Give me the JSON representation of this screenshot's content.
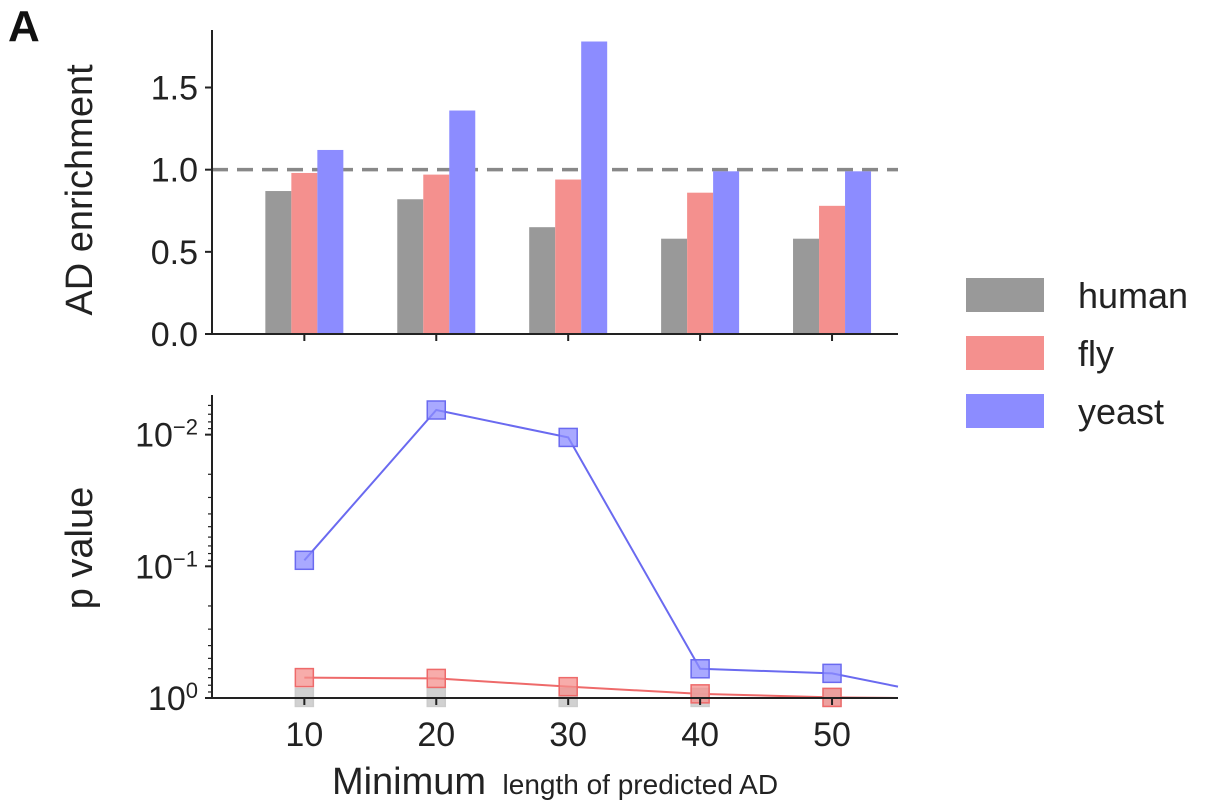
{
  "panel_label": "A",
  "colors": {
    "human": "#999999",
    "fly": "#f4908e",
    "yeast": "#8c8cff",
    "human_line": "#bbbbbb",
    "fly_line": "#ee6a6a",
    "yeast_line": "#6a6af0",
    "axis": "#222222",
    "reference": "#888888"
  },
  "chart_data": [
    {
      "type": "bar",
      "ylabel": "AD enrichment",
      "categories": [
        "10",
        "20",
        "30",
        "40",
        "50"
      ],
      "ylim": [
        0,
        1.85
      ],
      "yticks": [
        "0.0",
        "0.5",
        "1.0",
        "1.5"
      ],
      "reference_line": 1.0,
      "series": [
        {
          "name": "human",
          "values": [
            0.87,
            0.82,
            0.65,
            0.58,
            0.58
          ]
        },
        {
          "name": "fly",
          "values": [
            0.98,
            0.97,
            0.94,
            0.86,
            0.78
          ]
        },
        {
          "name": "yeast",
          "values": [
            1.12,
            1.36,
            1.78,
            0.99,
            0.99
          ]
        }
      ]
    },
    {
      "type": "line",
      "ylabel": "p value",
      "xlabel_main": "Minimum",
      "xlabel_rest": "length of predicted AD",
      "x": [
        10,
        20,
        30,
        40,
        50
      ],
      "xlim": [
        3,
        55
      ],
      "xticks": [
        "10",
        "20",
        "30",
        "40",
        "50"
      ],
      "yscale": "log-inverted",
      "yticks": [
        {
          "base": "10",
          "exp": "0",
          "value": 1
        },
        {
          "base": "10",
          "exp": "−1",
          "value": 0.1
        },
        {
          "base": "10",
          "exp": "−2",
          "value": 0.01
        }
      ],
      "series": [
        {
          "name": "human",
          "values": [
            0.99,
            0.99,
            0.99,
            0.99,
            0.99
          ]
        },
        {
          "name": "fly",
          "values": [
            0.7,
            0.71,
            0.82,
            0.93,
            0.99
          ],
          "end_value": 1.0
        },
        {
          "name": "yeast",
          "values": [
            0.09,
            0.0065,
            0.0105,
            0.6,
            0.65
          ],
          "end_value": 0.82
        }
      ]
    }
  ],
  "legend": {
    "position": "right",
    "items": [
      "human",
      "fly",
      "yeast"
    ]
  }
}
